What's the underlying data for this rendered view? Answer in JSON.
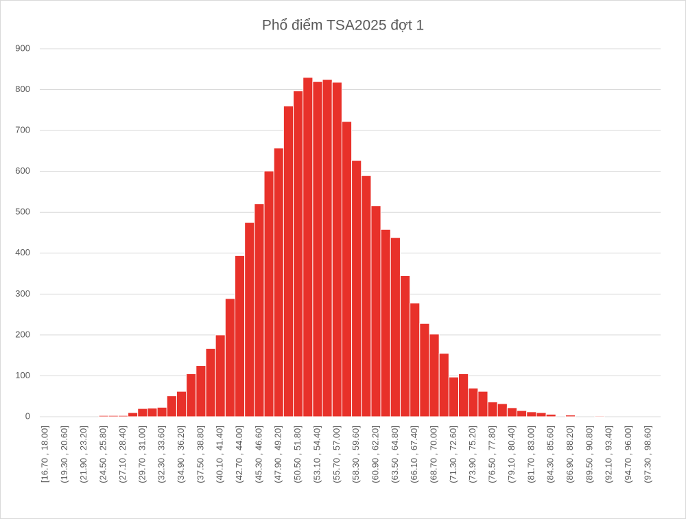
{
  "chart_data": {
    "type": "bar",
    "title": "Phổ điểm TSA2025 đợt 1",
    "categories": [
      "[16.70 , 18.00]",
      null,
      "(19.30 , 20.60]",
      null,
      "(21.90 , 23.20]",
      null,
      "(24.50 , 25.80]",
      null,
      "(27.10 , 28.40]",
      null,
      "(29.70 , 31.00]",
      null,
      "(32.30 , 33.60]",
      null,
      "(34.90 , 36.20]",
      null,
      "(37.50 , 38.80]",
      null,
      "(40.10 , 41.40]",
      null,
      "(42.70 , 44.00]",
      null,
      "(45.30 , 46.60]",
      null,
      "(47.90 , 49.20]",
      null,
      "(50.50 , 51.80]",
      null,
      "(53.10 , 54.40]",
      null,
      "(55.70 , 57.00]",
      null,
      "(58.30 , 59.60]",
      null,
      "(60.90 , 62.20]",
      null,
      "(63.50 , 64.80]",
      null,
      "(66.10 , 67.40]",
      null,
      "(68.70 , 70.00]",
      null,
      "(71.30 , 72.60]",
      null,
      "(73.90 , 75.20]",
      null,
      "(76.50 , 77.80]",
      null,
      "(79.10 , 80.40]",
      null,
      "(81.70 , 83.00]",
      null,
      "(84.30 , 85.60]",
      null,
      "(86.90 , 88.20]",
      null,
      "(89.50 , 90.80]",
      null,
      "(92.10 , 93.40]",
      null,
      "(94.70 , 96.00]",
      null,
      "(97.30 , 98.60]"
    ],
    "values": [
      0,
      0,
      0,
      0,
      0,
      0,
      3,
      3,
      3,
      10,
      20,
      21,
      23,
      51,
      62,
      105,
      125,
      167,
      200,
      289,
      394,
      475,
      521,
      601,
      657,
      760,
      797,
      830,
      820,
      825,
      818,
      722,
      627,
      590,
      516,
      458,
      438,
      345,
      278,
      228,
      202,
      155,
      97,
      105,
      70,
      62,
      36,
      32,
      22,
      15,
      12,
      10,
      6,
      0,
      4,
      0,
      0,
      2,
      0,
      0,
      0,
      0,
      0
    ],
    "color": "#e8312a",
    "ylim": [
      0,
      900
    ],
    "yticks": [
      0,
      100,
      200,
      300,
      400,
      500,
      600,
      700,
      800,
      900
    ],
    "grid": true
  }
}
